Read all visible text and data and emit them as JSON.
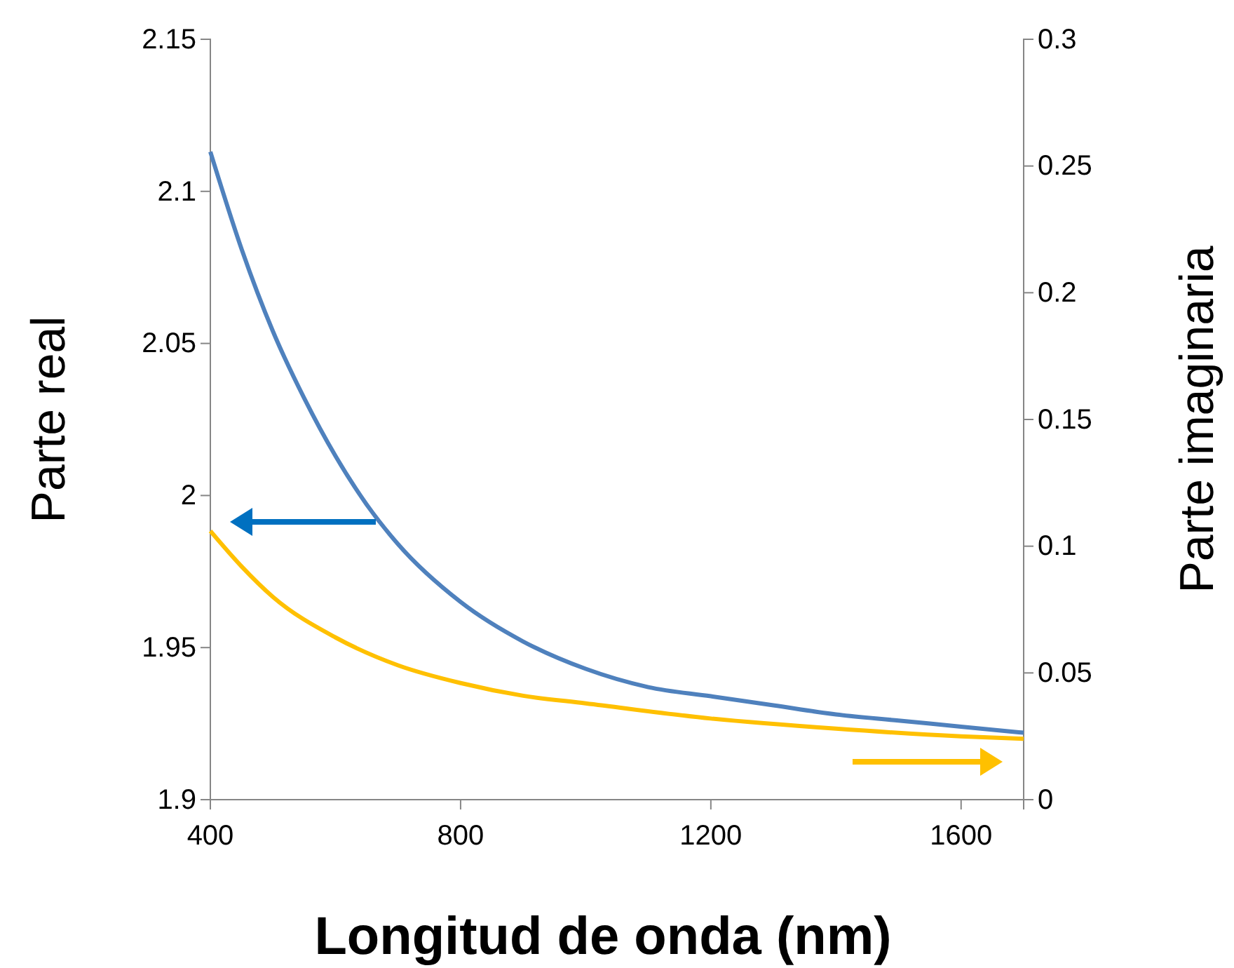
{
  "chart_data": {
    "type": "line",
    "xlabel": "Longitud de onda (nm)",
    "ylabel": "Parte real",
    "y2label": "Parte imaginaria",
    "xlim": [
      400,
      1700
    ],
    "xticks": [
      400,
      800,
      1200,
      1600
    ],
    "ylim": [
      1.9,
      2.15
    ],
    "yticks": [
      1.9,
      1.95,
      2,
      2.05,
      2.1,
      2.15
    ],
    "y2lim": [
      0,
      0.3
    ],
    "y2ticks": [
      0,
      0.05,
      0.1,
      0.15,
      0.2,
      0.25,
      0.3
    ],
    "grid": false,
    "marker": "none",
    "line_style": "solid",
    "series": [
      {
        "color": "#4f81bd",
        "x": [
          400,
          450,
          500,
          550,
          600,
          650,
          700,
          800,
          900,
          1000,
          1100,
          1200,
          1300,
          1400,
          1500,
          1600,
          1700
        ],
        "values": [
          2.113,
          2.081,
          2.054,
          2.032,
          2.013,
          1.997,
          1.984,
          1.965,
          1.952,
          1.943,
          1.937,
          1.934,
          1.931,
          1.928,
          1.926,
          1.924,
          1.922
        ]
      },
      {
        "color": "#ffc000",
        "axis": "y2",
        "x": [
          400,
          450,
          500,
          600,
          700,
          800,
          900,
          1000,
          1200,
          1400,
          1600,
          1700
        ],
        "values": [
          0.106,
          0.092,
          0.08,
          0.064,
          0.053,
          0.046,
          0.041,
          0.038,
          0.032,
          0.028,
          0.025,
          0.024
        ]
      }
    ]
  }
}
